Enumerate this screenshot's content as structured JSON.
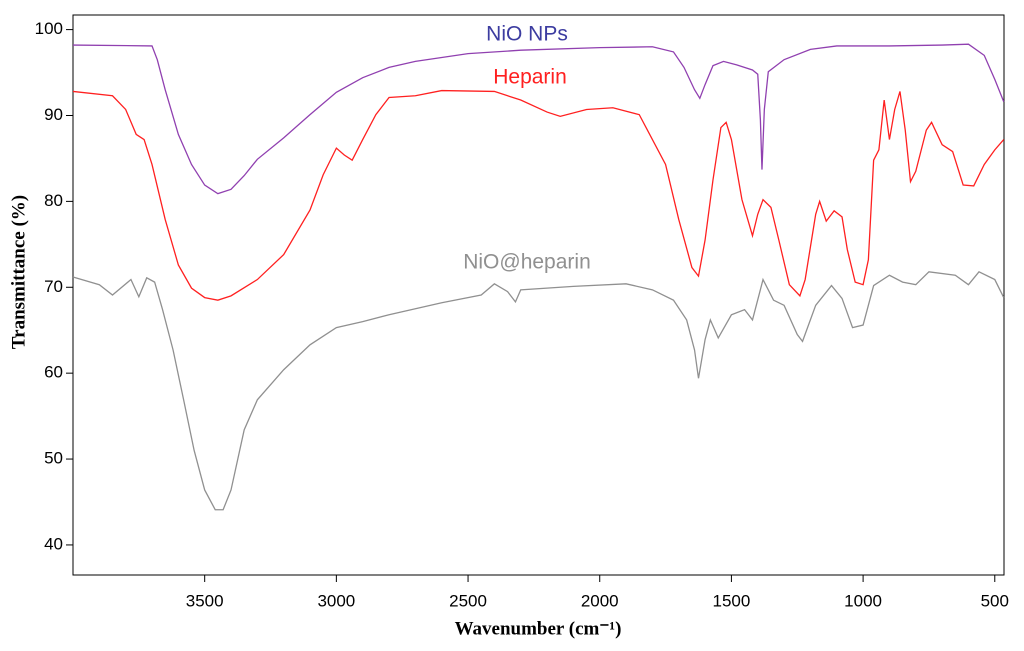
{
  "chart_data": {
    "type": "line",
    "xlabel": "Wavenumber (cm⁻¹)",
    "ylabel": "Transmittance (%)",
    "xlim": [
      4000,
      465
    ],
    "ylim": [
      36.5,
      101.7
    ],
    "xticks": [
      3500,
      3000,
      2500,
      2000,
      1500,
      1000,
      500
    ],
    "yticks": [
      40,
      50,
      60,
      70,
      80,
      90,
      100
    ],
    "series": [
      {
        "name": "NiO NPs",
        "color": "#9040b0",
        "label_color": "#3c3ca0",
        "x": [
          4000,
          3700,
          3680,
          3650,
          3600,
          3550,
          3500,
          3450,
          3400,
          3350,
          3300,
          3200,
          3100,
          3000,
          2900,
          2800,
          2700,
          2500,
          2300,
          2000,
          1800,
          1720,
          1680,
          1640,
          1620,
          1600,
          1570,
          1530,
          1480,
          1420,
          1400,
          1390,
          1384,
          1375,
          1360,
          1300,
          1200,
          1100,
          1000,
          900,
          700,
          600,
          540,
          500,
          466
        ],
        "values": [
          98.2,
          98.1,
          96.5,
          93,
          87.8,
          84.3,
          81.9,
          80.9,
          81.4,
          83,
          84.9,
          87.4,
          90.1,
          92.7,
          94.4,
          95.6,
          96.3,
          97.2,
          97.6,
          97.9,
          98,
          97.4,
          95.6,
          93,
          92,
          93.6,
          95.8,
          96.3,
          95.9,
          95.3,
          94.8,
          89.5,
          83.7,
          90.7,
          95.1,
          96.5,
          97.7,
          98.1,
          98.1,
          98.1,
          98.2,
          98.3,
          97,
          94.2,
          91.6
        ]
      },
      {
        "name": "Heparin",
        "color": "#ff2020",
        "label_color": "#ff2020",
        "x": [
          4000,
          3850,
          3800,
          3760,
          3730,
          3700,
          3650,
          3600,
          3550,
          3500,
          3450,
          3400,
          3300,
          3200,
          3100,
          3050,
          3000,
          2970,
          2940,
          2900,
          2850,
          2800,
          2700,
          2600,
          2400,
          2300,
          2200,
          2150,
          2050,
          1950,
          1850,
          1750,
          1700,
          1650,
          1625,
          1600,
          1570,
          1540,
          1520,
          1500,
          1460,
          1420,
          1400,
          1380,
          1350,
          1320,
          1280,
          1240,
          1220,
          1180,
          1165,
          1140,
          1110,
          1080,
          1060,
          1030,
          1000,
          980,
          960,
          940,
          920,
          900,
          880,
          860,
          840,
          820,
          800,
          760,
          740,
          700,
          660,
          620,
          580,
          540,
          500,
          466
        ],
        "values": [
          92.8,
          92.3,
          90.7,
          87.8,
          87.2,
          84.3,
          77.9,
          72.6,
          69.9,
          68.8,
          68.5,
          69,
          70.9,
          73.8,
          79,
          83.1,
          86.2,
          85.4,
          84.8,
          87.2,
          90.1,
          92.1,
          92.3,
          92.9,
          92.8,
          91.8,
          90.4,
          89.9,
          90.7,
          90.9,
          90.1,
          84.3,
          77.9,
          72.3,
          71.3,
          75.5,
          82.5,
          88.6,
          89.2,
          87.2,
          80.2,
          76,
          78.5,
          80.2,
          79.3,
          75.5,
          70.3,
          69,
          70.9,
          78.5,
          80,
          77.7,
          78.9,
          78.2,
          74.4,
          70.6,
          70.3,
          73.2,
          84.8,
          86,
          91.8,
          87.2,
          90.7,
          92.8,
          88.3,
          82.3,
          83.5,
          88.3,
          89.2,
          86.6,
          85.8,
          81.9,
          81.8,
          84.3,
          86,
          87.2
        ]
      },
      {
        "name": "NiO@heparin",
        "color": "#909090",
        "label_color": "#909090",
        "x": [
          4000,
          3900,
          3850,
          3780,
          3750,
          3720,
          3690,
          3660,
          3620,
          3580,
          3540,
          3500,
          3460,
          3430,
          3400,
          3350,
          3300,
          3200,
          3100,
          3000,
          2900,
          2800,
          2600,
          2450,
          2400,
          2350,
          2320,
          2300,
          2100,
          1900,
          1800,
          1720,
          1670,
          1640,
          1625,
          1600,
          1580,
          1550,
          1500,
          1450,
          1420,
          1380,
          1340,
          1300,
          1250,
          1230,
          1180,
          1120,
          1080,
          1040,
          1000,
          960,
          900,
          850,
          800,
          750,
          650,
          600,
          560,
          500,
          466
        ],
        "values": [
          71.2,
          70.3,
          69.1,
          70.9,
          68.9,
          71.1,
          70.6,
          67.4,
          62.7,
          56.9,
          51,
          46.4,
          44.1,
          44.1,
          46.4,
          53.4,
          56.9,
          60.4,
          63.3,
          65.3,
          66,
          66.8,
          68.2,
          69.1,
          70.4,
          69.5,
          68.3,
          69.7,
          70.1,
          70.4,
          69.7,
          68.5,
          66.2,
          62.7,
          59.4,
          63.9,
          66.2,
          64.1,
          66.8,
          67.4,
          66.2,
          70.9,
          68.5,
          67.9,
          64.5,
          63.7,
          67.9,
          70.2,
          68.7,
          65.3,
          65.6,
          70.2,
          71.4,
          70.6,
          70.3,
          71.8,
          71.4,
          70.3,
          71.8,
          70.9,
          68.8
        ]
      }
    ]
  }
}
